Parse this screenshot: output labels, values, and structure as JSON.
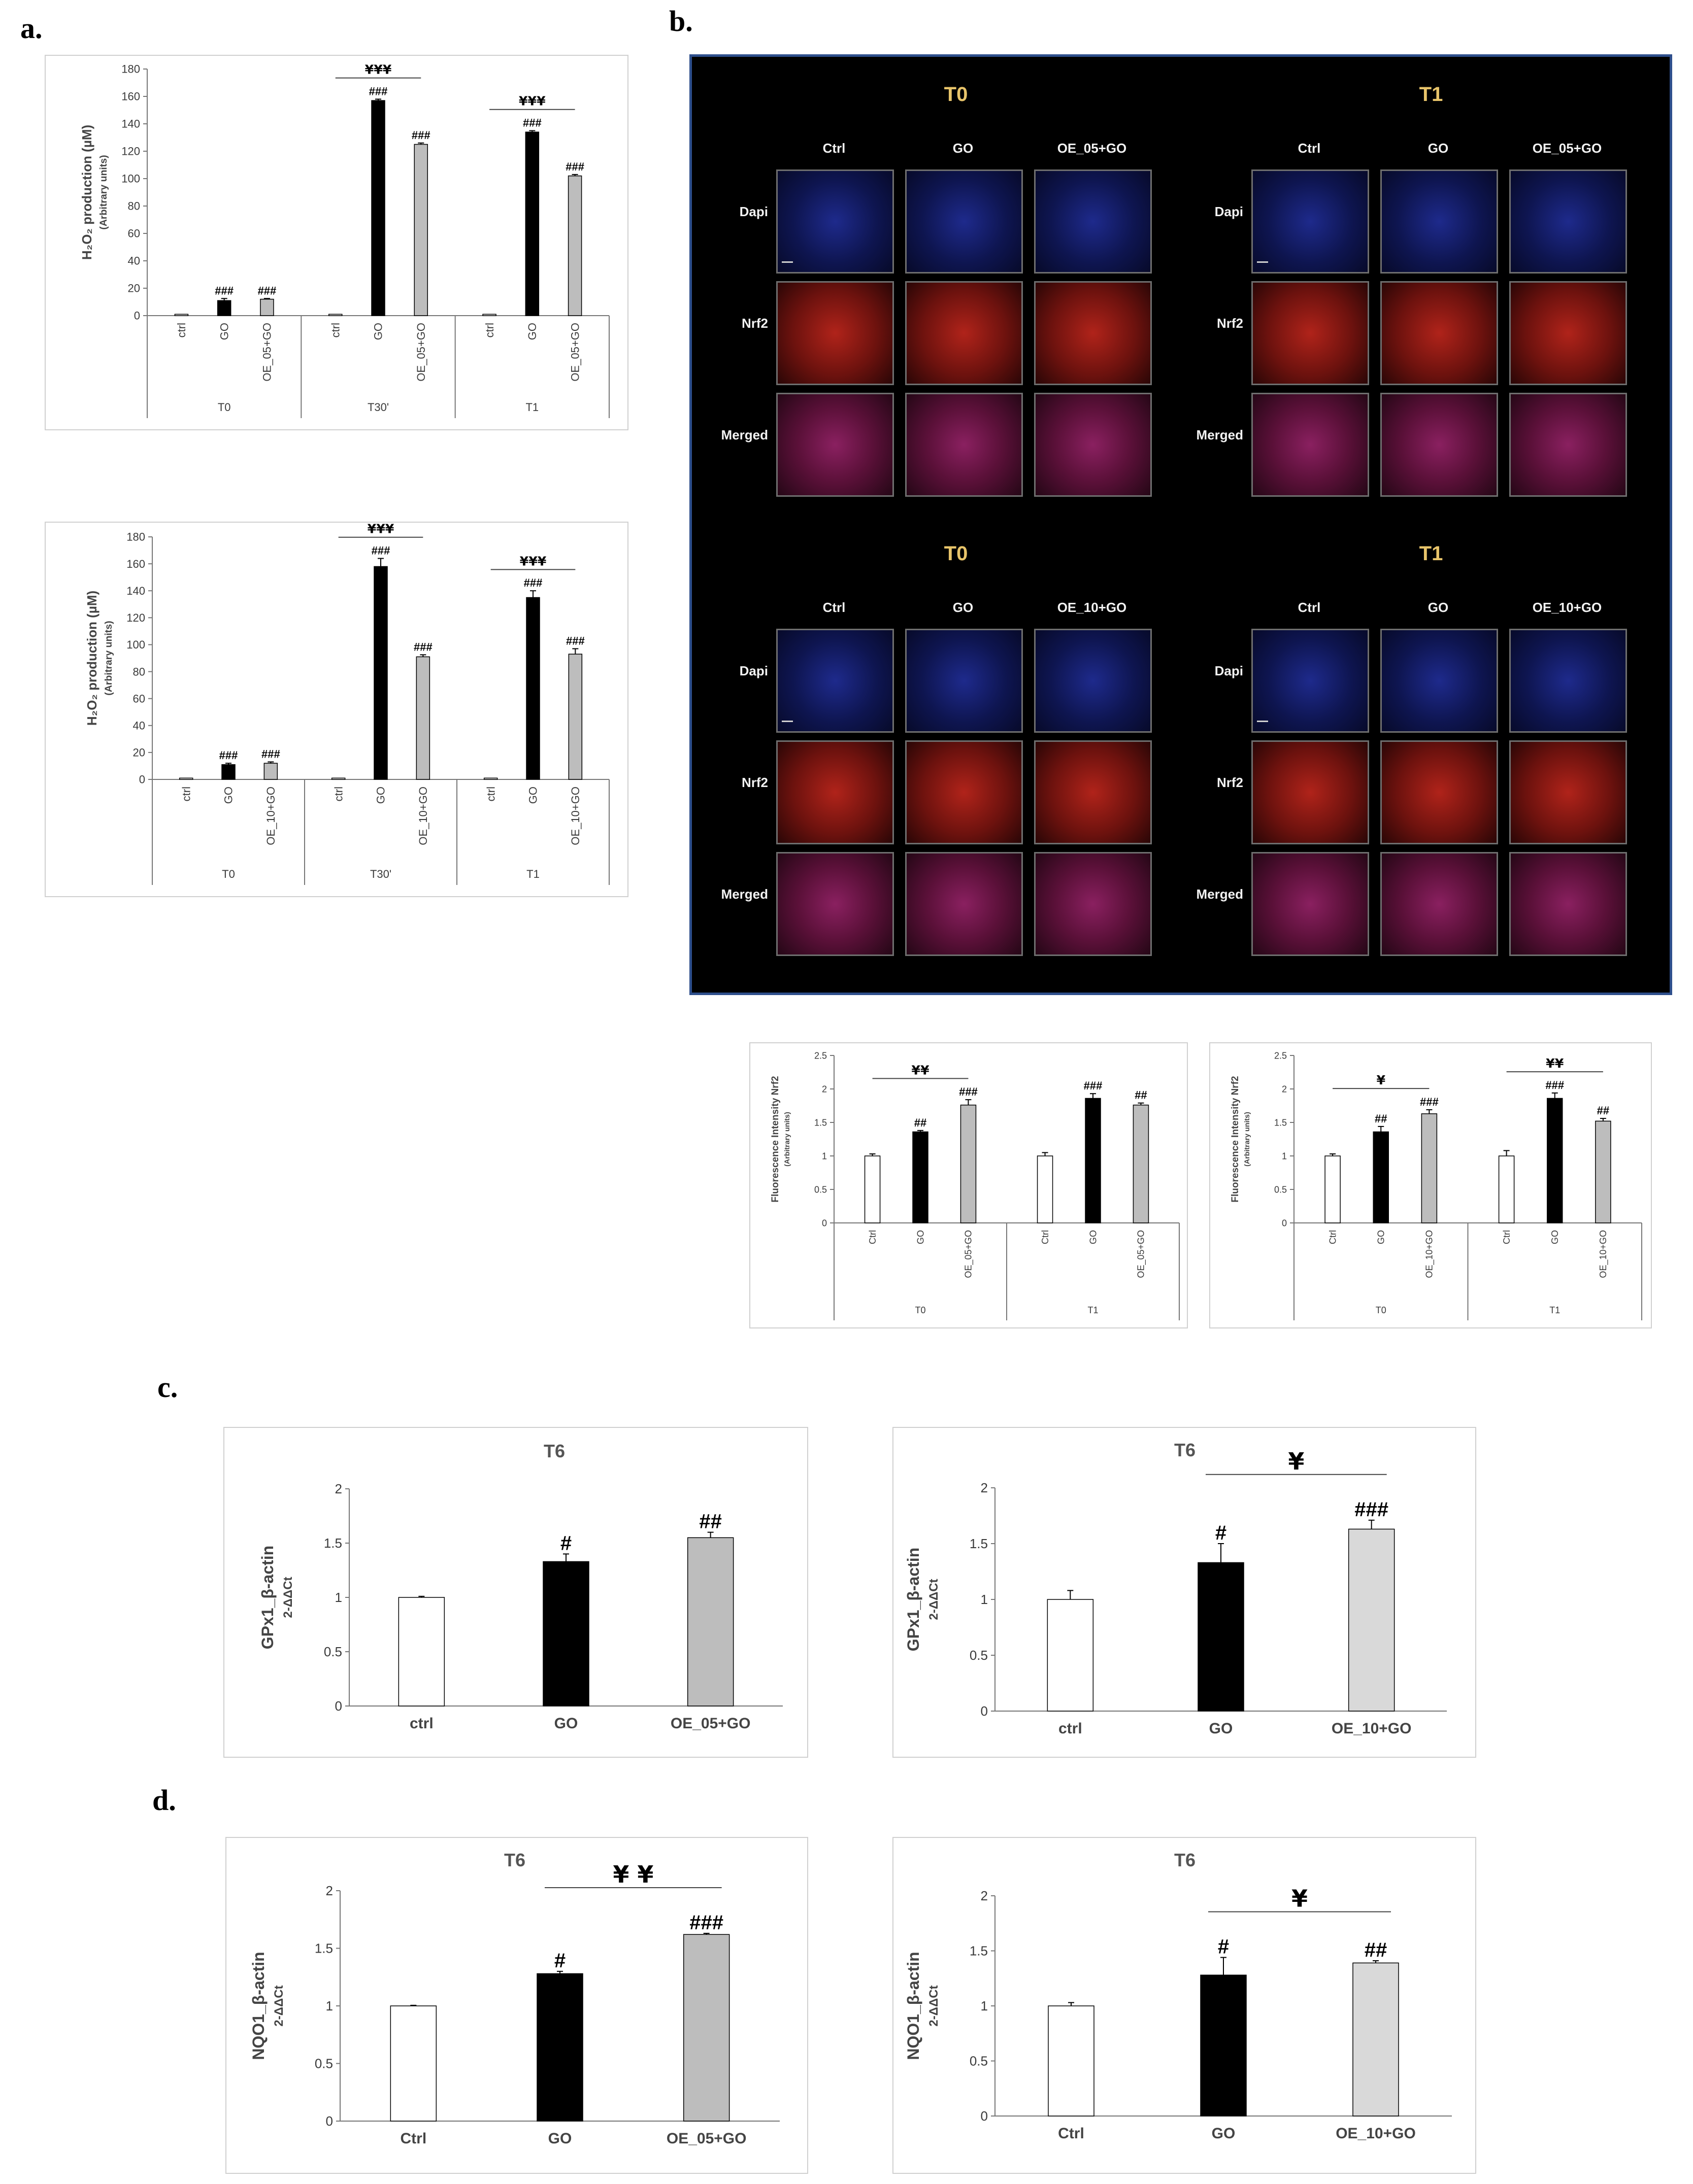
{
  "panels": {
    "a": "a.",
    "b": "b.",
    "c": "c.",
    "d": "d."
  },
  "microscopy": {
    "row_labels": [
      "Dapi",
      "Nrf2",
      "Merged"
    ],
    "blocks": [
      {
        "time": "T0",
        "columns": [
          "Ctrl",
          "GO",
          "OE_05+GO"
        ]
      },
      {
        "time": "T1",
        "columns": [
          "Ctrl",
          "GO",
          "OE_05+GO"
        ]
      },
      {
        "time": "T0",
        "columns": [
          "Ctrl",
          "GO",
          "OE_10+GO"
        ]
      },
      {
        "time": "T1",
        "columns": [
          "Ctrl",
          "GO",
          "OE_10+GO"
        ]
      }
    ]
  },
  "chart_data": [
    {
      "id": "a1",
      "type": "bar",
      "ylabel_lines": [
        "H₂O₂ production (µM)",
        "(Arbitrary units)"
      ],
      "ylim": [
        0,
        180
      ],
      "yticks": [
        0,
        20,
        40,
        60,
        80,
        100,
        120,
        140,
        160,
        180
      ],
      "groups": [
        {
          "label": "T0",
          "categories": [
            "ctrl",
            "GO",
            "OE_05+GO"
          ],
          "values": [
            1,
            11,
            12
          ],
          "errors": [
            0,
            1.5,
            0.5
          ],
          "marks": [
            "",
            "###",
            "###"
          ]
        },
        {
          "label": "T30'",
          "categories": [
            "ctrl",
            "GO",
            "OE_05+GO"
          ],
          "values": [
            1,
            157,
            125
          ],
          "errors": [
            0,
            1,
            1
          ],
          "marks": [
            "",
            "###",
            "###"
          ],
          "bracket": "¥¥¥"
        },
        {
          "label": "T1",
          "categories": [
            "ctrl",
            "GO",
            "OE_05+GO"
          ],
          "values": [
            1,
            134,
            102
          ],
          "errors": [
            0,
            1,
            1
          ],
          "marks": [
            "",
            "###",
            "###"
          ],
          "bracket": "¥¥¥"
        }
      ],
      "bar_colors": [
        "#ffffff",
        "#000000",
        "#bdbdbd"
      ]
    },
    {
      "id": "a2",
      "type": "bar",
      "ylabel_lines": [
        "H₂O₂ production (µM)",
        "(Arbitrary units)"
      ],
      "ylim": [
        0,
        180
      ],
      "yticks": [
        0,
        20,
        40,
        60,
        80,
        100,
        120,
        140,
        160,
        180
      ],
      "groups": [
        {
          "label": "T0",
          "categories": [
            "ctrl",
            "GO",
            "OE_10+GO"
          ],
          "values": [
            1,
            11,
            12
          ],
          "errors": [
            0,
            1,
            1
          ],
          "marks": [
            "",
            "###",
            "###"
          ]
        },
        {
          "label": "T30'",
          "categories": [
            "ctrl",
            "GO",
            "OE_10+GO"
          ],
          "values": [
            1,
            158,
            91
          ],
          "errors": [
            0,
            6,
            1.5
          ],
          "marks": [
            "",
            "###",
            "###"
          ],
          "bracket": "¥¥¥"
        },
        {
          "label": "T1",
          "categories": [
            "ctrl",
            "GO",
            "OE_10+GO"
          ],
          "values": [
            1,
            135,
            93
          ],
          "errors": [
            0,
            5,
            4
          ],
          "marks": [
            "",
            "###",
            "###"
          ],
          "bracket": "¥¥¥"
        }
      ],
      "bar_colors": [
        "#ffffff",
        "#000000",
        "#bdbdbd"
      ]
    },
    {
      "id": "b1",
      "type": "bar",
      "ylabel_lines": [
        "Fluorescence Intensity Nrf2",
        "(Arbitrary units)"
      ],
      "ylim": [
        0,
        2.5
      ],
      "yticks": [
        0,
        0.5,
        1,
        1.5,
        2,
        2.5
      ],
      "groups": [
        {
          "label": "T0",
          "categories": [
            "Ctrl",
            "GO",
            "OE_05+GO"
          ],
          "values": [
            1.0,
            1.36,
            1.76
          ],
          "errors": [
            0.03,
            0.02,
            0.08
          ],
          "marks": [
            "",
            "##",
            "###"
          ],
          "bracket": "¥¥"
        },
        {
          "label": "T1",
          "categories": [
            "Ctrl",
            "GO",
            "OE_05+GO"
          ],
          "values": [
            1.0,
            1.86,
            1.76
          ],
          "errors": [
            0.05,
            0.07,
            0.03
          ],
          "marks": [
            "",
            "###",
            "##"
          ]
        }
      ],
      "bar_colors": [
        "#ffffff",
        "#000000",
        "#bdbdbd"
      ]
    },
    {
      "id": "b2",
      "type": "bar",
      "ylabel_lines": [
        "Fluorescence Intensity Nrf2",
        "(Arbitrary units)"
      ],
      "ylim": [
        0,
        2.5
      ],
      "yticks": [
        0,
        0.5,
        1,
        1.5,
        2,
        2.5
      ],
      "groups": [
        {
          "label": "T0",
          "categories": [
            "Ctrl",
            "GO",
            "OE_10+GO"
          ],
          "values": [
            1.0,
            1.36,
            1.63
          ],
          "errors": [
            0.03,
            0.08,
            0.06
          ],
          "marks": [
            "",
            "##",
            "###"
          ],
          "bracket": "¥"
        },
        {
          "label": "T1",
          "categories": [
            "Ctrl",
            "GO",
            "OE_10+GO"
          ],
          "values": [
            1.0,
            1.86,
            1.52
          ],
          "errors": [
            0.08,
            0.08,
            0.04
          ],
          "marks": [
            "",
            "###",
            "##"
          ],
          "bracket": "¥¥"
        }
      ],
      "bar_colors": [
        "#ffffff",
        "#000000",
        "#bdbdbd"
      ]
    },
    {
      "id": "c1",
      "type": "bar",
      "title": "T6",
      "ylabel_lines": [
        "GPx1_β-actin",
        "2-ΔΔCt"
      ],
      "ylim": [
        0,
        2
      ],
      "yticks": [
        0,
        0.5,
        1,
        1.5,
        2
      ],
      "categories": [
        "ctrl",
        "GO",
        "OE_05+GO"
      ],
      "values": [
        1.0,
        1.33,
        1.55
      ],
      "errors": [
        0.01,
        0.07,
        0.05
      ],
      "marks": [
        "",
        "#",
        "##"
      ],
      "bar_colors": [
        "#ffffff",
        "#000000",
        "#bdbdbd"
      ]
    },
    {
      "id": "c2",
      "type": "bar",
      "title": "T6",
      "ylabel_lines": [
        "GPx1_β-actin",
        "2-ΔΔCt"
      ],
      "ylim": [
        0,
        2
      ],
      "yticks": [
        0,
        0.5,
        1,
        1.5,
        2
      ],
      "categories": [
        "ctrl",
        "GO",
        "OE_10+GO"
      ],
      "values": [
        1.0,
        1.33,
        1.63
      ],
      "errors": [
        0.08,
        0.17,
        0.08
      ],
      "marks": [
        "",
        "#",
        "###"
      ],
      "bracket": "¥",
      "bar_colors": [
        "#ffffff",
        "#000000",
        "#d9d9d9"
      ]
    },
    {
      "id": "d1",
      "type": "bar",
      "title": "T6",
      "ylabel_lines": [
        "NQO1_β-actin",
        "2-ΔΔCt"
      ],
      "ylim": [
        0,
        2
      ],
      "yticks": [
        0,
        0.5,
        1,
        1.5,
        2
      ],
      "categories": [
        "Ctrl",
        "GO",
        "OE_05+GO"
      ],
      "values": [
        1.0,
        1.28,
        1.62
      ],
      "errors": [
        0.005,
        0.02,
        0.01
      ],
      "marks": [
        "",
        "#",
        "###"
      ],
      "bracket": "¥ ¥",
      "bar_colors": [
        "#ffffff",
        "#000000",
        "#bdbdbd"
      ]
    },
    {
      "id": "d2",
      "type": "bar",
      "title": "T6",
      "ylabel_lines": [
        "NQO1_β-actin",
        "2-ΔΔCt"
      ],
      "ylim": [
        0,
        2
      ],
      "yticks": [
        0,
        0.5,
        1,
        1.5,
        2
      ],
      "categories": [
        "Ctrl",
        "GO",
        "OE_10+GO"
      ],
      "values": [
        1.0,
        1.28,
        1.39
      ],
      "errors": [
        0.03,
        0.16,
        0.02
      ],
      "marks": [
        "",
        "#",
        "##"
      ],
      "bracket": "¥",
      "bar_colors": [
        "#ffffff",
        "#000000",
        "#d9d9d9"
      ]
    }
  ]
}
